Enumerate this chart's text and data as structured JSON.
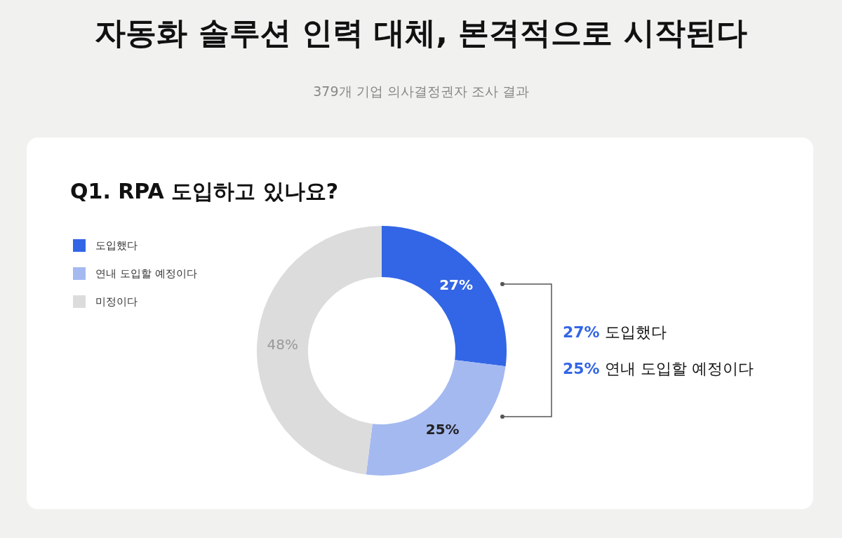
{
  "chart_data": {
    "type": "donut",
    "title": "자동화 솔루션 인력 대체, 본격적으로 시작된다",
    "subtitle": "379개 기업 의사결정권자 조사 결과",
    "annotations": [
      "Q1. RPA 도입하고 있나요?",
      "27% 도입했다",
      "25% 연내 도입할 예정이다"
    ],
    "categories": [
      "도입했다",
      "연내 도입할 예정이다",
      "미정이다"
    ],
    "values": [
      27,
      25,
      48
    ],
    "colors": [
      "#3366e6",
      "#a4b9f0",
      "#dcdcdc"
    ],
    "value_labels": [
      "27%",
      "25%",
      "48%"
    ],
    "legend": "top left"
  }
}
